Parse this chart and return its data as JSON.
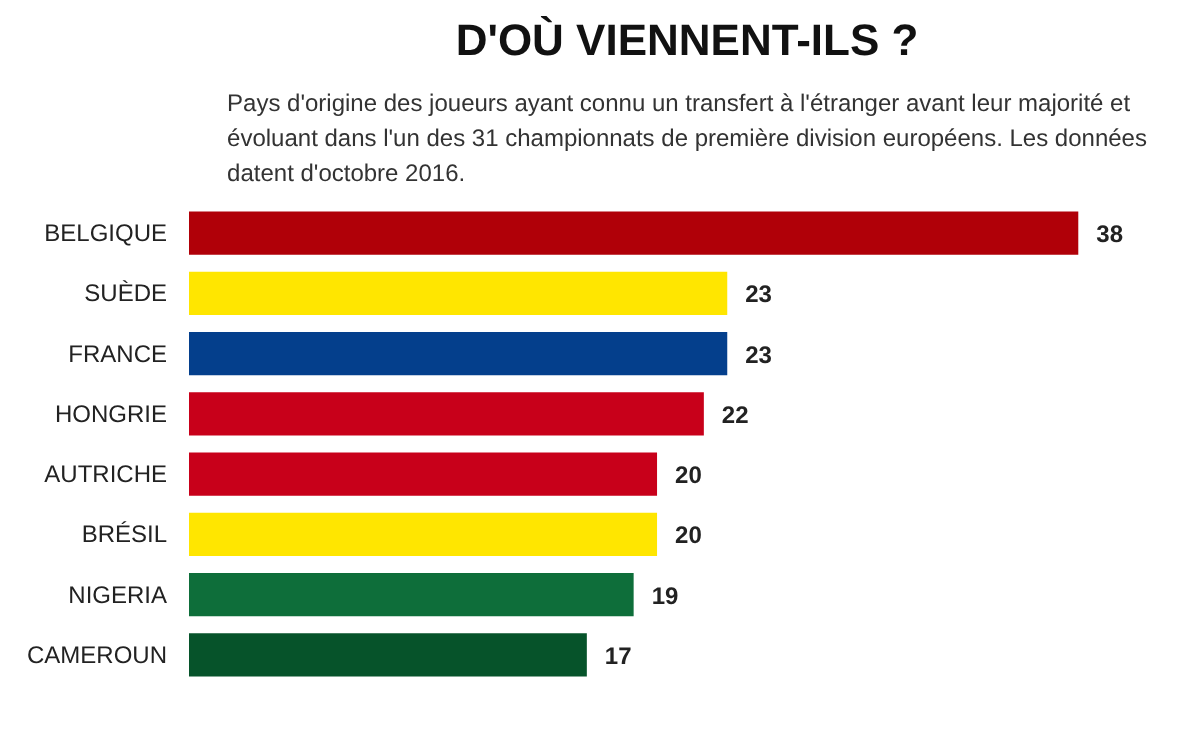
{
  "chart_data": {
    "type": "bar",
    "orientation": "horizontal",
    "title": "D'OÙ VIENNENT-ILS ?",
    "subtitle": "Pays d'origine des joueurs ayant connu un transfert à l'étranger avant leur majorité et\névoluant dans l'un des 31 championnats de première division européens. Les données\ndatent d'octobre 2016.",
    "categories": [
      "BELGIQUE",
      "SUÈDE",
      "FRANCE",
      "HONGRIE",
      "AUTRICHE",
      "BRÉSIL",
      "NIGERIA",
      "CAMEROUN"
    ],
    "values": [
      38,
      23,
      23,
      22,
      20,
      20,
      19,
      17
    ],
    "colors": [
      "#b00008",
      "#ffe600",
      "#043f8c",
      "#c8001a",
      "#c8001a",
      "#ffe600",
      "#0e6e3a",
      "#06532a"
    ],
    "data_labels": true,
    "grid": false
  }
}
